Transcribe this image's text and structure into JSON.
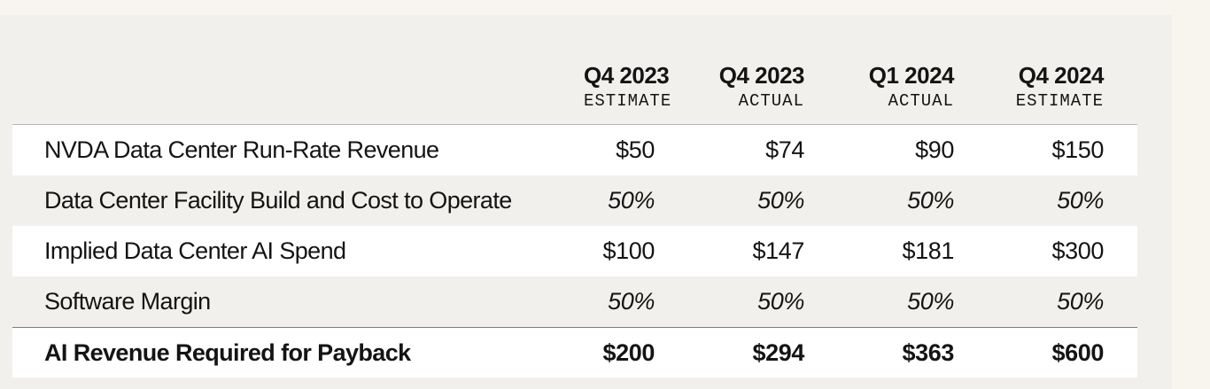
{
  "table": {
    "columns": [
      {
        "quarter": "Q4 2023",
        "type": "ESTIMATE"
      },
      {
        "quarter": "Q4 2023",
        "type": "ACTUAL"
      },
      {
        "quarter": "Q1 2024",
        "type": "ACTUAL"
      },
      {
        "quarter": "Q4 2024",
        "type": "ESTIMATE"
      }
    ],
    "rows": [
      {
        "label": "NVDA Data Center Run-Rate Revenue",
        "values": [
          "$50",
          "$74",
          "$90",
          "$150"
        ]
      },
      {
        "label": "Data Center Facility Build and Cost to Operate",
        "values": [
          "50%",
          "50%",
          "50%",
          "50%"
        ]
      },
      {
        "label": "Implied Data Center AI Spend",
        "values": [
          "$100",
          "$147",
          "$181",
          "$300"
        ]
      },
      {
        "label": "Software Margin",
        "values": [
          "50%",
          "50%",
          "50%",
          "50%"
        ]
      },
      {
        "label": "AI Revenue Required for Payback",
        "values": [
          "$200",
          "$294",
          "$363",
          "$600"
        ]
      }
    ]
  }
}
